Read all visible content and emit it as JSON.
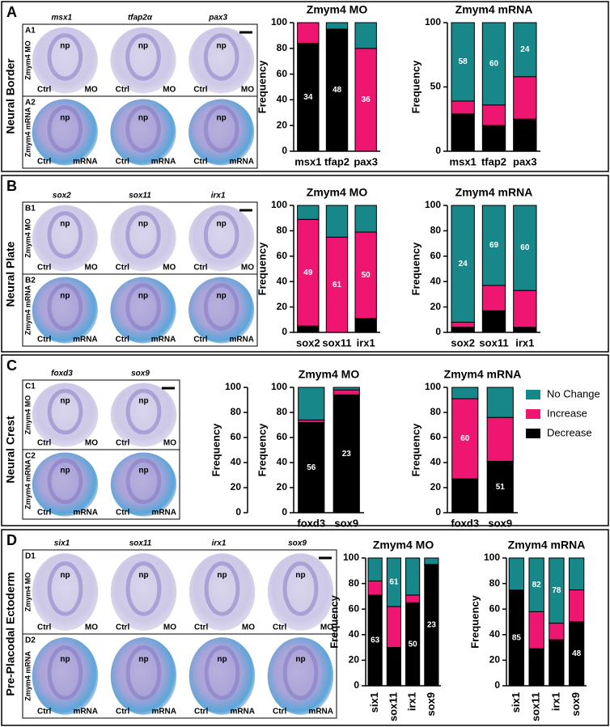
{
  "panels": [
    {
      "letter": "A",
      "section": "Neural Border",
      "genes": [
        "msx1",
        "tfap2α",
        "pax3"
      ],
      "rows": [
        {
          "id": "A1",
          "label": "Zmym4 MO",
          "condition": "MO"
        },
        {
          "id": "A2",
          "label": "Zmym4 mRNA",
          "condition": "mRNA"
        }
      ]
    },
    {
      "letter": "B",
      "section": "Neural Plate",
      "genes": [
        "sox2",
        "sox11",
        "irx1"
      ],
      "rows": [
        {
          "id": "B1",
          "label": "Zmym4 MO",
          "condition": "MO"
        },
        {
          "id": "B2",
          "label": "Zmym4 mRNA",
          "condition": "mRNA"
        }
      ]
    },
    {
      "letter": "C",
      "section": "Neural Crest",
      "genes": [
        "foxd3",
        "sox9"
      ],
      "rows": [
        {
          "id": "C1",
          "label": "Zmym4 MO",
          "condition": "MO"
        },
        {
          "id": "C2",
          "label": "Zmym4 mRNA",
          "condition": "mRNA"
        }
      ]
    },
    {
      "letter": "D",
      "section": "Pre-Placodal Ectoderm",
      "genes": [
        "six1",
        "sox11",
        "irx1",
        "sox9"
      ],
      "rows": [
        {
          "id": "D1",
          "label": "Zmym4 MO",
          "condition": "MO"
        },
        {
          "id": "D2",
          "label": "Zmym4 mRNA",
          "condition": "mRNA"
        }
      ]
    }
  ],
  "image_labels": {
    "np": "np",
    "ctrl": "Ctrl"
  },
  "chart_data": [
    {
      "type": "bar",
      "stacked": true,
      "title": "Zmym4 MO",
      "ylabel": "Frequency",
      "categories": [
        "msx1",
        "tfap2",
        "pax3"
      ],
      "n": [
        34,
        48,
        36
      ],
      "series": [
        {
          "name": "Decrease",
          "color": "#000000",
          "values": [
            84,
            95,
            0
          ]
        },
        {
          "name": "Increase",
          "color": "#ee1670",
          "values": [
            16,
            0,
            80
          ]
        },
        {
          "name": "No Change",
          "color": "#17878a",
          "values": [
            0,
            5,
            20
          ]
        }
      ],
      "ylim": [
        0,
        100
      ],
      "yticks": [
        0,
        20,
        40,
        60,
        80,
        100
      ]
    },
    {
      "type": "bar",
      "stacked": true,
      "title": "Zmym4 mRNA",
      "ylabel": "Frequency",
      "categories": [
        "msx1",
        "tfap2",
        "pax3"
      ],
      "n": [
        58,
        60,
        24
      ],
      "series": [
        {
          "name": "Decrease",
          "color": "#000000",
          "values": [
            29,
            20,
            25
          ]
        },
        {
          "name": "Increase",
          "color": "#ee1670",
          "values": [
            10,
            16,
            33
          ]
        },
        {
          "name": "No Change",
          "color": "#17878a",
          "values": [
            61,
            64,
            42
          ]
        }
      ],
      "ylim": [
        0,
        100
      ],
      "yticks": [
        0,
        50,
        100
      ]
    },
    {
      "type": "bar",
      "stacked": true,
      "title": "Zmym4 MO",
      "ylabel": "Frequency",
      "categories": [
        "sox2",
        "sox11",
        "irx1"
      ],
      "n": [
        49,
        61,
        50
      ],
      "series": [
        {
          "name": "Decrease",
          "color": "#000000",
          "values": [
            5,
            0,
            11
          ]
        },
        {
          "name": "Increase",
          "color": "#ee1670",
          "values": [
            84,
            75,
            68
          ]
        },
        {
          "name": "No Change",
          "color": "#17878a",
          "values": [
            11,
            25,
            21
          ]
        }
      ],
      "ylim": [
        0,
        100
      ],
      "yticks": [
        0,
        20,
        40,
        60,
        80,
        100
      ]
    },
    {
      "type": "bar",
      "stacked": true,
      "title": "Zmym4 mRNA",
      "ylabel": "Frequency",
      "categories": [
        "sox2",
        "sox11",
        "irx1"
      ],
      "n": [
        24,
        69,
        60
      ],
      "series": [
        {
          "name": "Decrease",
          "color": "#000000",
          "values": [
            4,
            17,
            4
          ]
        },
        {
          "name": "Increase",
          "color": "#ee1670",
          "values": [
            4,
            20,
            29
          ]
        },
        {
          "name": "No Change",
          "color": "#17878a",
          "values": [
            92,
            63,
            67
          ]
        }
      ],
      "ylim": [
        0,
        100
      ],
      "yticks": [
        0,
        20,
        40,
        60,
        80,
        100
      ]
    },
    {
      "type": "bar",
      "stacked": true,
      "ylabel": "Frequency",
      "ylim": [
        0,
        100
      ],
      "yticks": [
        0,
        20,
        40,
        60,
        80,
        100
      ]
    },
    {
      "type": "bar",
      "stacked": true,
      "title": "Zmym4 MO",
      "ylabel": "Frequency",
      "categories": [
        "foxd3",
        "sox9"
      ],
      "n": [
        56,
        23
      ],
      "series": [
        {
          "name": "Decrease",
          "color": "#000000",
          "values": [
            72,
            94
          ]
        },
        {
          "name": "Increase",
          "color": "#ee1670",
          "values": [
            2,
            4
          ]
        },
        {
          "name": "No Change",
          "color": "#17878a",
          "values": [
            26,
            2
          ]
        }
      ],
      "ylim": [
        0,
        100
      ],
      "yticks": [
        0,
        20,
        40,
        60,
        80,
        100
      ]
    },
    {
      "type": "bar",
      "stacked": true,
      "title": "Zmym4 mRNA",
      "ylabel": "Frequency",
      "categories": [
        "foxd3",
        "sox9"
      ],
      "n": [
        60,
        51
      ],
      "legend": "right",
      "series": [
        {
          "name": "Decrease",
          "color": "#000000",
          "values": [
            27,
            41
          ]
        },
        {
          "name": "Increase",
          "color": "#ee1670",
          "values": [
            64,
            35
          ]
        },
        {
          "name": "No Change",
          "color": "#17878a",
          "values": [
            9,
            24
          ]
        }
      ],
      "ylim": [
        0,
        100
      ],
      "yticks": [
        0,
        20,
        40,
        60,
        80,
        100
      ]
    },
    {
      "type": "bar",
      "stacked": true,
      "title": "Zmym4 MO",
      "ylabel": "Frequency",
      "categories": [
        "six1",
        "sox11",
        "irx1",
        "sox9"
      ],
      "rotate_labels": true,
      "n": [
        63,
        61,
        50,
        23
      ],
      "series": [
        {
          "name": "Decrease",
          "color": "#000000",
          "values": [
            71,
            30,
            65,
            95
          ]
        },
        {
          "name": "Increase",
          "color": "#ee1670",
          "values": [
            11,
            32,
            6,
            0
          ]
        },
        {
          "name": "No Change",
          "color": "#17878a",
          "values": [
            18,
            38,
            29,
            5
          ]
        }
      ],
      "ylim": [
        0,
        100
      ],
      "yticks": [
        0,
        20,
        40,
        60,
        80,
        100
      ]
    },
    {
      "type": "bar",
      "stacked": true,
      "title": "Zmym4 mRNA",
      "ylabel": "Frequency",
      "categories": [
        "six1",
        "sox11",
        "irx1",
        "sox9"
      ],
      "rotate_labels": true,
      "n": [
        85,
        82,
        78,
        48
      ],
      "series": [
        {
          "name": "Decrease",
          "color": "#000000",
          "values": [
            75,
            29,
            36,
            50
          ]
        },
        {
          "name": "Increase",
          "color": "#ee1670",
          "values": [
            0,
            29,
            13,
            25
          ]
        },
        {
          "name": "No Change",
          "color": "#17878a",
          "values": [
            25,
            42,
            51,
            25
          ]
        }
      ],
      "ylim": [
        0,
        100
      ],
      "yticks": [
        0,
        20,
        40,
        60,
        80,
        100
      ]
    }
  ]
}
